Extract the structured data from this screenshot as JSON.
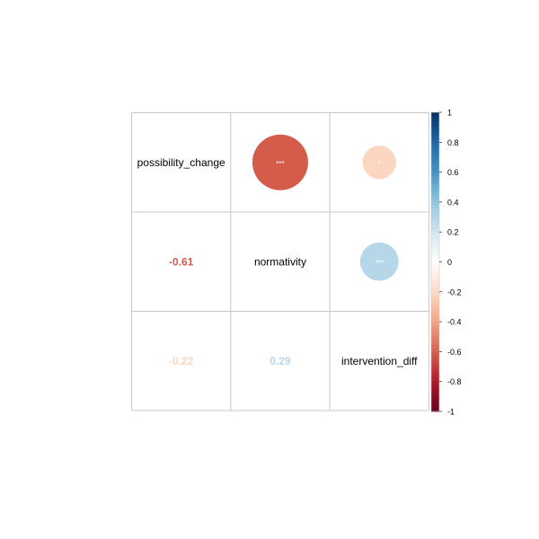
{
  "chart_data": {
    "type": "heatmap",
    "variables": [
      "possibility_change",
      "normativity",
      "intervention_diff"
    ],
    "correlations": [
      {
        "row": "possibility_change",
        "col": "normativity",
        "value": -0.61,
        "label": "-0.61",
        "significance": "***"
      },
      {
        "row": "possibility_change",
        "col": "intervention_diff",
        "value": -0.22,
        "label": "-0.22",
        "significance": "*"
      },
      {
        "row": "normativity",
        "col": "intervention_diff",
        "value": 0.29,
        "label": "0.29",
        "significance": "***"
      }
    ],
    "upper_method": "circle",
    "lower_method": "number",
    "colorbar": {
      "range": [
        -1,
        1
      ],
      "ticks": [
        "1",
        "0.8",
        "0.6",
        "0.4",
        "0.2",
        "0",
        "-0.2",
        "-0.4",
        "-0.6",
        "-0.8",
        "-1"
      ],
      "palette": [
        "#67001F",
        "#B2182B",
        "#D6604D",
        "#F4A582",
        "#FDDBC7",
        "#FFFFFF",
        "#D1E5F0",
        "#92C5DE",
        "#4393C3",
        "#2166AC",
        "#053061"
      ]
    }
  }
}
